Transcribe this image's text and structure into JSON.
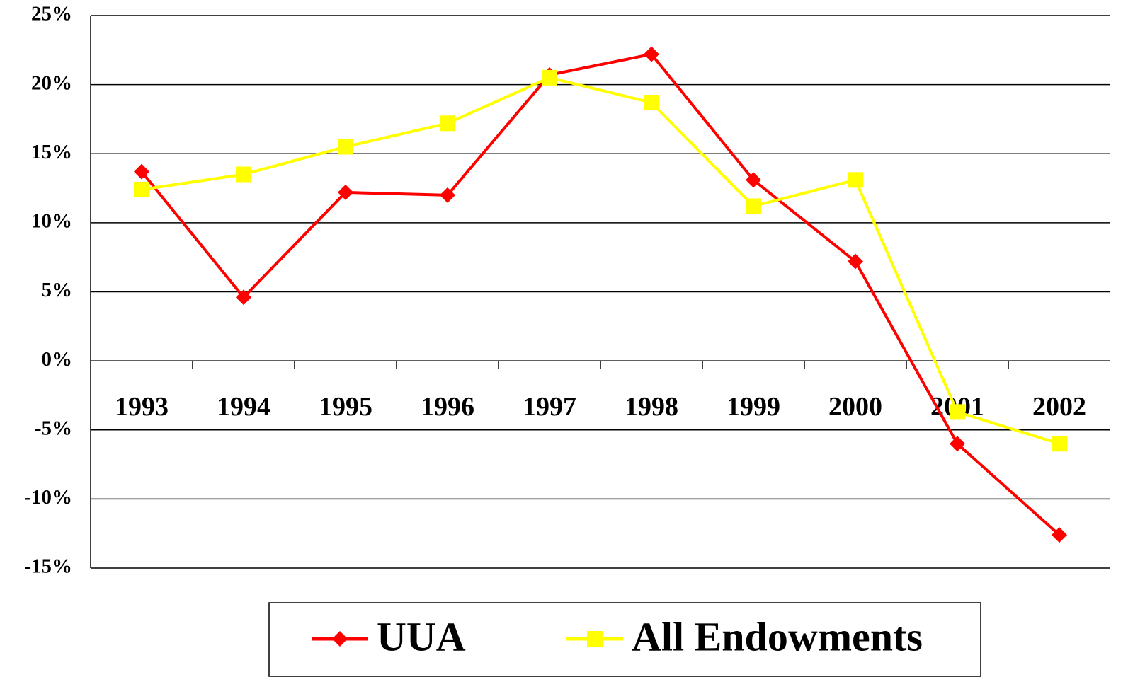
{
  "chart_data": {
    "type": "line",
    "categories": [
      "1993",
      "1994",
      "1995",
      "1996",
      "1997",
      "1998",
      "1999",
      "2000",
      "2001",
      "2002"
    ],
    "series": [
      {
        "name": "UUA",
        "color": "#ff0000",
        "marker": "diamond",
        "values": [
          13.7,
          4.6,
          12.2,
          12.0,
          20.7,
          22.2,
          13.1,
          7.2,
          -6.0,
          -12.6
        ]
      },
      {
        "name": "All Endowments",
        "color": "#ffff00",
        "marker": "square",
        "values": [
          12.4,
          13.5,
          15.5,
          17.2,
          20.5,
          18.7,
          11.2,
          13.1,
          -3.7,
          -6.0
        ]
      }
    ],
    "ylim": [
      -15,
      25
    ],
    "yticks": [
      {
        "value": -15,
        "label": "-15%"
      },
      {
        "value": -10,
        "label": "-10%"
      },
      {
        "value": -5,
        "label": "-5%"
      },
      {
        "value": 0,
        "label": "0%"
      },
      {
        "value": 5,
        "label": "5%"
      },
      {
        "value": 10,
        "label": "10%"
      },
      {
        "value": 15,
        "label": "15%"
      },
      {
        "value": 20,
        "label": "20%"
      },
      {
        "value": 25,
        "label": "25%"
      }
    ],
    "grid": true,
    "legend": "bottom"
  }
}
